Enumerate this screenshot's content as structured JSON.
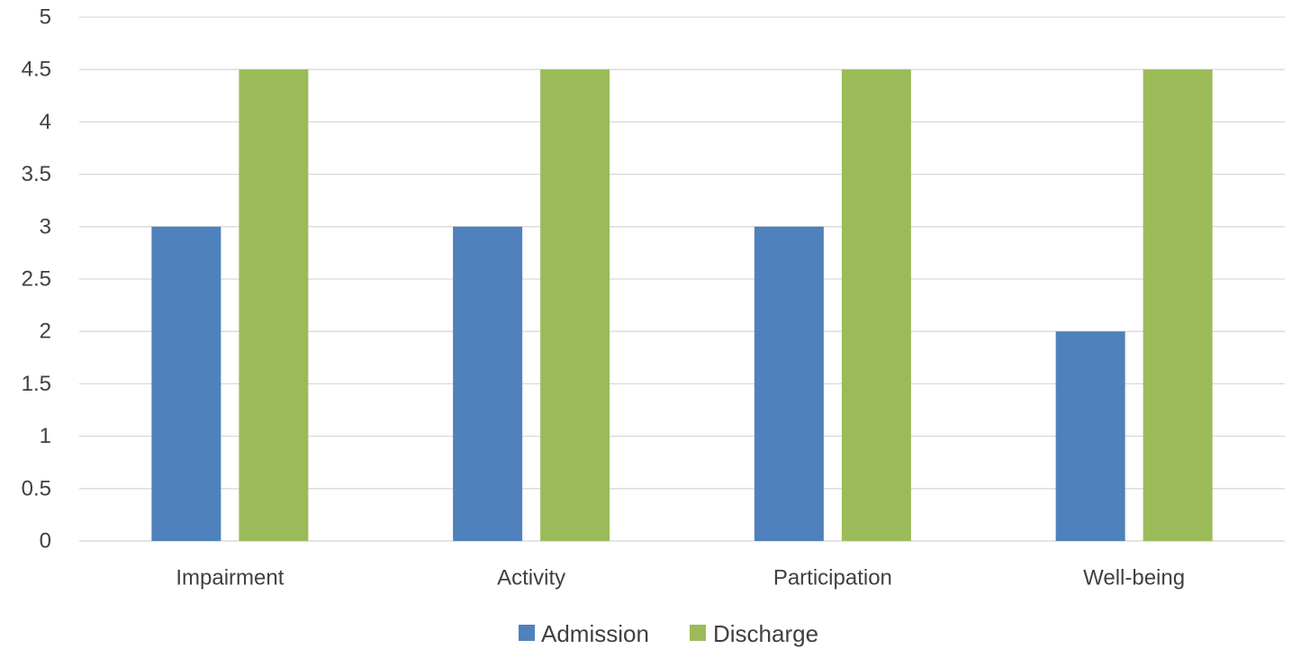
{
  "chart_data": {
    "type": "bar",
    "categories": [
      "Impairment",
      "Activity",
      "Participation",
      "Well-being"
    ],
    "series": [
      {
        "name": "Admission",
        "values": [
          3,
          3,
          3,
          2
        ],
        "color": "#4F81BD"
      },
      {
        "name": "Discharge",
        "values": [
          4.5,
          4.5,
          4.5,
          4.5
        ],
        "color": "#9BBB59"
      }
    ],
    "title": "",
    "xlabel": "",
    "ylabel": "",
    "ylim": [
      0,
      5
    ],
    "yticks": [
      "0",
      "0.5",
      "1",
      "1.5",
      "2",
      "2.5",
      "3",
      "3.5",
      "4",
      "4.5",
      "5"
    ],
    "grid": true,
    "legend_position": "bottom",
    "gridline_color": "#D9D9D9",
    "text_color": "#404040"
  }
}
